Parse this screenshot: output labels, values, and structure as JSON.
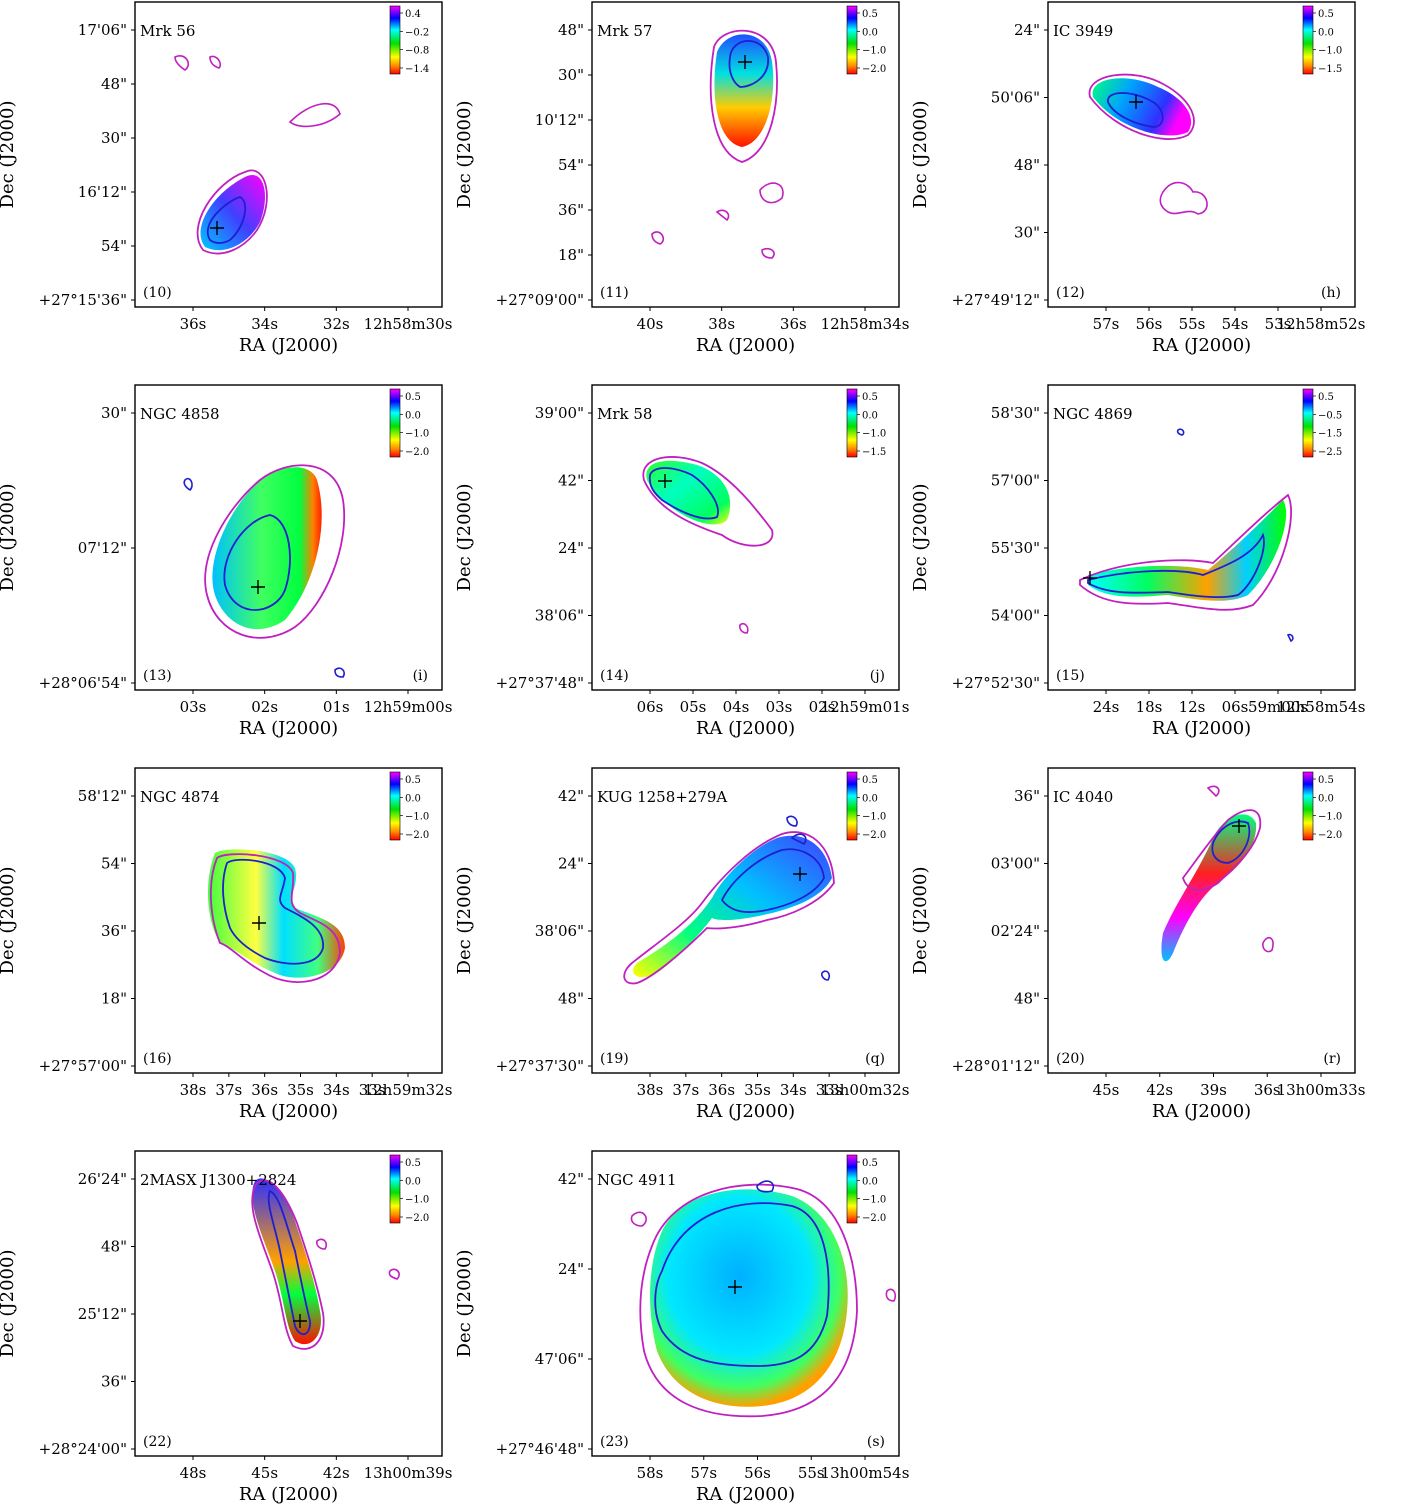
{
  "figure": {
    "panels": [
      {
        "name": "Mrk 56",
        "num": "(10)",
        "letter": "",
        "dec": [
          "17'06\"",
          "48\"",
          "30\"",
          "16'12\"",
          "54\"",
          "+27°15'36\""
        ],
        "ra": [
          "36s",
          "34s",
          "32s",
          "12h58m30s"
        ],
        "cbar": [
          "0.4",
          "−0.2",
          "−0.8",
          "−1.4"
        ]
      },
      {
        "name": "Mrk 57",
        "num": "(11)",
        "letter": "",
        "dec": [
          "48\"",
          "30\"",
          "10'12\"",
          "54\"",
          "36\"",
          "18\"",
          "+27°09'00\""
        ],
        "ra": [
          "40s",
          "38s",
          "36s",
          "12h58m34s"
        ],
        "cbar": [
          "0.5",
          "0.0",
          "−1.0",
          "−2.0"
        ]
      },
      {
        "name": "IC 3949",
        "num": "(12)",
        "letter": "(h)",
        "dec": [
          "24\"",
          "50'06\"",
          "48\"",
          "30\"",
          "+27°49'12\""
        ],
        "ra": [
          "57s",
          "56s",
          "55s",
          "54s",
          "53s",
          "12h58m52s"
        ],
        "cbar": [
          "0.5",
          "0.0",
          "−1.0",
          "−1.5"
        ]
      },
      {
        "name": "NGC 4858",
        "num": "(13)",
        "letter": "(i)",
        "dec": [
          "30\"",
          "07'12\"",
          "+28°06'54\""
        ],
        "ra": [
          "03s",
          "02s",
          "01s",
          "12h59m00s"
        ],
        "cbar": [
          "0.5",
          "0.0",
          "−1.0",
          "−2.0"
        ]
      },
      {
        "name": "Mrk 58",
        "num": "(14)",
        "letter": "(j)",
        "dec": [
          "39'00\"",
          "42\"",
          "24\"",
          "38'06\"",
          "+27°37'48\""
        ],
        "ra": [
          "06s",
          "05s",
          "04s",
          "03s",
          "02s",
          "12h59m01s"
        ],
        "cbar": [
          "0.5",
          "0.0",
          "−1.0",
          "−1.5"
        ]
      },
      {
        "name": "NGC 4869",
        "num": "(15)",
        "letter": "",
        "dec": [
          "58'30\"",
          "57'00\"",
          "55'30\"",
          "54'00\"",
          "+27°52'30\""
        ],
        "ra": [
          "24s",
          "18s",
          "12s",
          "06s",
          "59m00s",
          "12h58m54s"
        ],
        "cbar": [
          "0.5",
          "−0.5",
          "−1.5",
          "−2.5"
        ]
      },
      {
        "name": "NGC 4874",
        "num": "(16)",
        "letter": "",
        "dec": [
          "58'12\"",
          "54\"",
          "36\"",
          "18\"",
          "+27°57'00\""
        ],
        "ra": [
          "38s",
          "37s",
          "36s",
          "35s",
          "34s",
          "33s",
          "12h59m32s"
        ],
        "cbar": [
          "0.5",
          "0.0",
          "−1.0",
          "−2.0"
        ]
      },
      {
        "name": "KUG 1258+279A",
        "num": "(19)",
        "letter": "(q)",
        "dec": [
          "42\"",
          "24\"",
          "38'06\"",
          "48\"",
          "+27°37'30\""
        ],
        "ra": [
          "38s",
          "37s",
          "36s",
          "35s",
          "34s",
          "33s",
          "13h00m32s"
        ],
        "cbar": [
          "0.5",
          "0.0",
          "−1.0",
          "−2.0"
        ]
      },
      {
        "name": "IC 4040",
        "num": "(20)",
        "letter": "(r)",
        "dec": [
          "36\"",
          "03'00\"",
          "02'24\"",
          "48\"",
          "+28°01'12\""
        ],
        "ra": [
          "45s",
          "42s",
          "39s",
          "36s",
          "13h00m33s"
        ],
        "cbar": [
          "0.5",
          "0.0",
          "−1.0",
          "−2.0"
        ]
      },
      {
        "name": "2MASX J1300+2824",
        "num": "(22)",
        "letter": "",
        "dec": [
          "26'24\"",
          "48\"",
          "25'12\"",
          "36\"",
          "+28°24'00\""
        ],
        "ra": [
          "48s",
          "45s",
          "42s",
          "13h00m39s"
        ],
        "cbar": [
          "0.5",
          "0.0",
          "−1.0",
          "−2.0"
        ]
      },
      {
        "name": "NGC 4911",
        "num": "(23)",
        "letter": "(s)",
        "dec": [
          "42\"",
          "24\"",
          "47'06\"",
          "+27°46'48\""
        ],
        "ra": [
          "58s",
          "57s",
          "56s",
          "55s",
          "13h00m54s"
        ],
        "cbar": [
          "0.5",
          "0.0",
          "−1.0",
          "−2.0"
        ]
      }
    ],
    "xlabel": "RA (J2000)",
    "ylabel": "Dec (J2000)"
  },
  "chart_data": {
    "type": "heatmap",
    "xlabel": "RA (J2000)",
    "ylabel": "Dec (J2000)",
    "colorscale": [
      "#ff0000",
      "#ff8c00",
      "#ffff00",
      "#00e000",
      "#00ffff",
      "#0000ff",
      "#ff00ff"
    ],
    "contour_colors": [
      "#1f1fd0",
      "#c020c0"
    ],
    "panels": [
      {
        "name": "Mrk 56",
        "cbar_ticks": [
          0.4,
          -0.2,
          -0.8,
          -1.4
        ]
      },
      {
        "name": "Mrk 57",
        "cbar_ticks": [
          0.5,
          0.0,
          -1.0,
          -2.0
        ]
      },
      {
        "name": "IC 3949",
        "cbar_ticks": [
          0.5,
          0.0,
          -1.0,
          -1.5
        ]
      },
      {
        "name": "NGC 4858",
        "cbar_ticks": [
          0.5,
          0.0,
          -1.0,
          -2.0
        ]
      },
      {
        "name": "Mrk 58",
        "cbar_ticks": [
          0.5,
          0.0,
          -1.0,
          -1.5
        ]
      },
      {
        "name": "NGC 4869",
        "cbar_ticks": [
          0.5,
          -0.5,
          -1.5,
          -2.5
        ]
      },
      {
        "name": "NGC 4874",
        "cbar_ticks": [
          0.5,
          0.0,
          -1.0,
          -2.0
        ]
      },
      {
        "name": "KUG 1258+279A",
        "cbar_ticks": [
          0.5,
          0.0,
          -1.0,
          -2.0
        ]
      },
      {
        "name": "IC 4040",
        "cbar_ticks": [
          0.5,
          0.0,
          -1.0,
          -2.0
        ]
      },
      {
        "name": "2MASX J1300+2824",
        "cbar_ticks": [
          0.5,
          0.0,
          -1.0,
          -2.0
        ]
      },
      {
        "name": "NGC 4911",
        "cbar_ticks": [
          0.5,
          0.0,
          -1.0,
          -2.0
        ]
      }
    ]
  }
}
